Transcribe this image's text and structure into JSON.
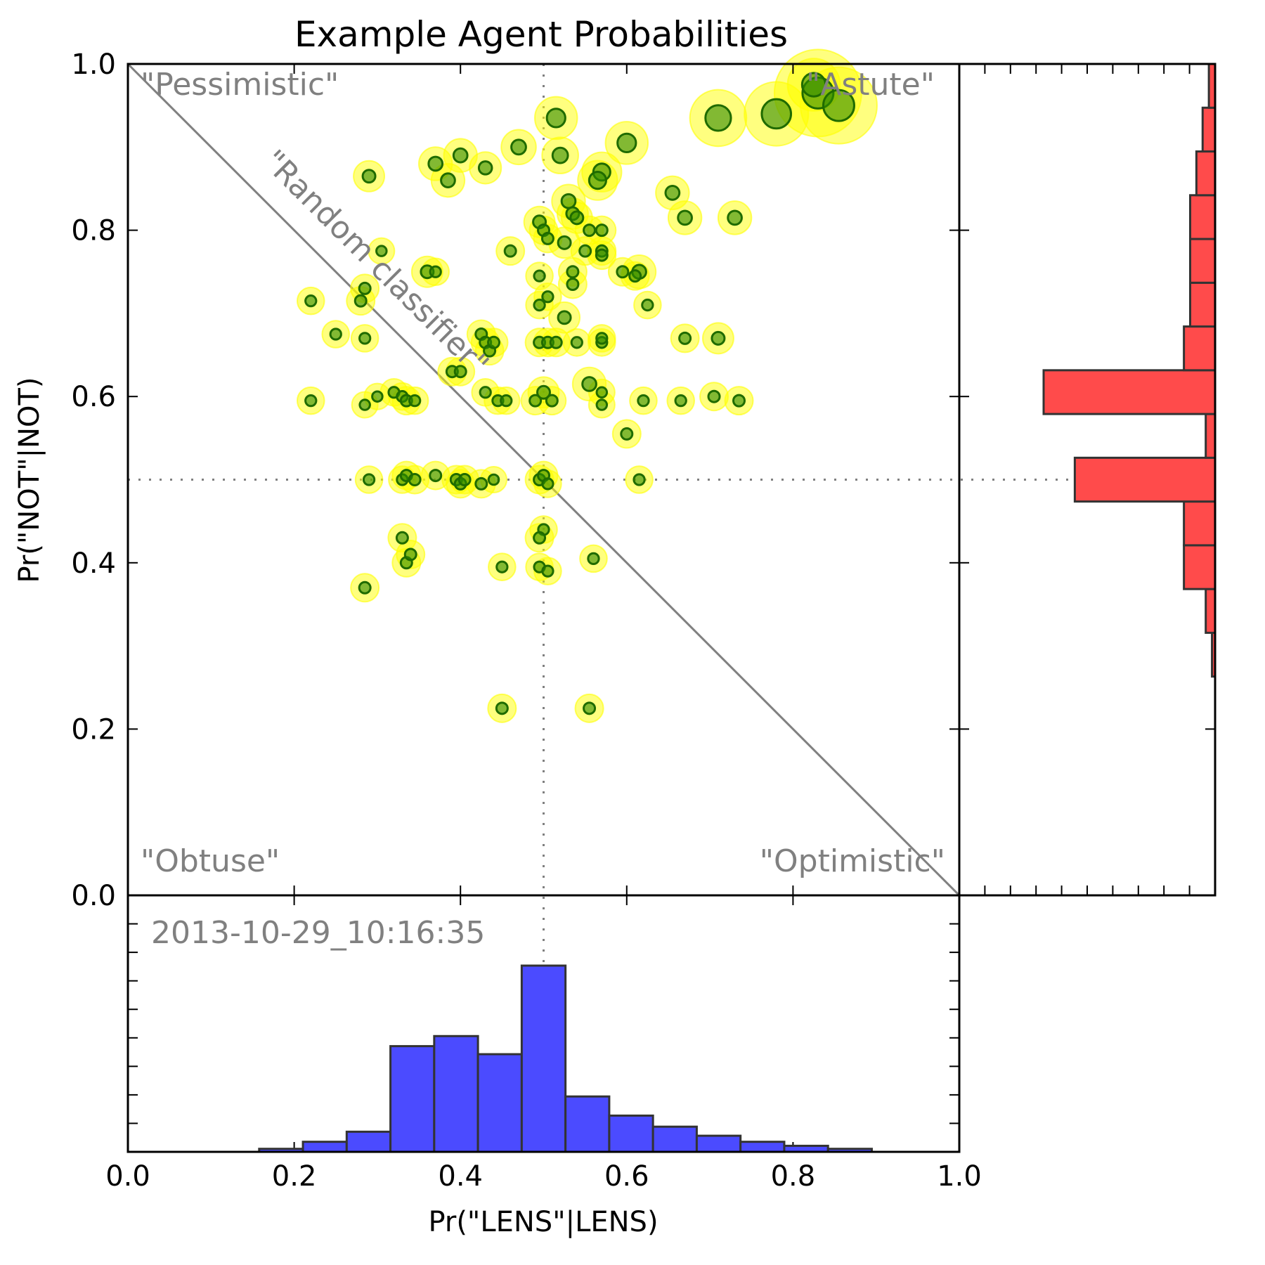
{
  "chart_data": {
    "type": "scatter",
    "title": "Example Agent Probabilities",
    "xlabel": "Pr(\"LENS\"|LENS)",
    "ylabel": "Pr(\"NOT\"|NOT)",
    "xlim": [
      0.0,
      1.0
    ],
    "ylim": [
      0.0,
      1.0
    ],
    "x_ticks": [
      "0.0",
      "0.2",
      "0.4",
      "0.6",
      "0.8",
      "1.0"
    ],
    "y_ticks": [
      "0.0",
      "0.2",
      "0.4",
      "0.6",
      "0.8",
      "1.0"
    ],
    "reference_lines": {
      "x": 0.5,
      "y": 0.5,
      "diagonal": [
        [
          0,
          1
        ],
        [
          1,
          0
        ]
      ]
    },
    "annotations": {
      "top_left": "\"Pessimistic\"",
      "top_right": "\"Astute\"",
      "bottom_left": "\"Obtuse\"",
      "bottom_right": "\"Optimistic\"",
      "diagonal": "\"Random classifier\"",
      "timestamp": "2013-10-29_10:16:35"
    },
    "colors": {
      "halo": "#ffff00",
      "point": "#2e8b00",
      "x_hist": "#4b4bff",
      "y_hist": "#ff4b4b",
      "reference": "#808080"
    },
    "points": [
      [
        0.83,
        0.965,
        16
      ],
      [
        0.855,
        0.95,
        12
      ],
      [
        0.78,
        0.94,
        8
      ],
      [
        0.71,
        0.935,
        6
      ],
      [
        0.825,
        0.975,
        5
      ],
      [
        0.515,
        0.935,
        3
      ],
      [
        0.6,
        0.905,
        3
      ],
      [
        0.47,
        0.9,
        1.8
      ],
      [
        0.52,
        0.89,
        2
      ],
      [
        0.4,
        0.89,
        1.6
      ],
      [
        0.37,
        0.88,
        1.6
      ],
      [
        0.43,
        0.875,
        1.4
      ],
      [
        0.57,
        0.87,
        2.5
      ],
      [
        0.565,
        0.86,
        2.5
      ],
      [
        0.385,
        0.86,
        1.6
      ],
      [
        0.29,
        0.865,
        1.3
      ],
      [
        0.655,
        0.845,
        1.6
      ],
      [
        0.53,
        0.835,
        1.6
      ],
      [
        0.535,
        0.82,
        1.3
      ],
      [
        0.54,
        0.815,
        1.3
      ],
      [
        0.67,
        0.815,
        1.6
      ],
      [
        0.73,
        0.815,
        1.6
      ],
      [
        0.495,
        0.81,
        1.3
      ],
      [
        0.5,
        0.8,
        1.0
      ],
      [
        0.57,
        0.8,
        1.0
      ],
      [
        0.555,
        0.8,
        1.0
      ],
      [
        0.505,
        0.79,
        1.0
      ],
      [
        0.525,
        0.785,
        1.3
      ],
      [
        0.46,
        0.775,
        1.0
      ],
      [
        0.55,
        0.775,
        1.0
      ],
      [
        0.57,
        0.775,
        1.0
      ],
      [
        0.57,
        0.77,
        1.0
      ],
      [
        0.305,
        0.775,
        0.8
      ],
      [
        0.36,
        0.75,
        1.3
      ],
      [
        0.37,
        0.75,
        0.9
      ],
      [
        0.535,
        0.75,
        1.0
      ],
      [
        0.595,
        0.75,
        1.0
      ],
      [
        0.615,
        0.75,
        1.6
      ],
      [
        0.61,
        0.745,
        1.0
      ],
      [
        0.495,
        0.745,
        0.9
      ],
      [
        0.535,
        0.735,
        1.0
      ],
      [
        0.285,
        0.73,
        1.0
      ],
      [
        0.505,
        0.72,
        0.9
      ],
      [
        0.22,
        0.715,
        0.9
      ],
      [
        0.28,
        0.715,
        1.0
      ],
      [
        0.625,
        0.71,
        0.9
      ],
      [
        0.495,
        0.71,
        0.9
      ],
      [
        0.525,
        0.695,
        1.3
      ],
      [
        0.25,
        0.675,
        0.9
      ],
      [
        0.285,
        0.67,
        0.9
      ],
      [
        0.425,
        0.675,
        1.0
      ],
      [
        0.43,
        0.665,
        1.0
      ],
      [
        0.435,
        0.655,
        1.0
      ],
      [
        0.44,
        0.665,
        1.0
      ],
      [
        0.54,
        0.665,
        0.9
      ],
      [
        0.57,
        0.665,
        0.9
      ],
      [
        0.57,
        0.67,
        0.9
      ],
      [
        0.67,
        0.67,
        1.0
      ],
      [
        0.71,
        0.67,
        1.3
      ],
      [
        0.495,
        0.665,
        1.0
      ],
      [
        0.505,
        0.665,
        1.0
      ],
      [
        0.515,
        0.665,
        1.0
      ],
      [
        0.39,
        0.63,
        1.0
      ],
      [
        0.4,
        0.63,
        1.0
      ],
      [
        0.555,
        0.615,
        1.6
      ],
      [
        0.22,
        0.595,
        0.9
      ],
      [
        0.285,
        0.59,
        0.8
      ],
      [
        0.3,
        0.6,
        0.8
      ],
      [
        0.32,
        0.605,
        0.9
      ],
      [
        0.33,
        0.6,
        0.9
      ],
      [
        0.335,
        0.595,
        1.0
      ],
      [
        0.345,
        0.595,
        0.9
      ],
      [
        0.43,
        0.605,
        0.9
      ],
      [
        0.445,
        0.595,
        0.9
      ],
      [
        0.455,
        0.595,
        0.9
      ],
      [
        0.49,
        0.595,
        1.0
      ],
      [
        0.5,
        0.605,
        1.3
      ],
      [
        0.51,
        0.595,
        1.0
      ],
      [
        0.57,
        0.605,
        0.8
      ],
      [
        0.57,
        0.59,
        0.8
      ],
      [
        0.62,
        0.595,
        0.9
      ],
      [
        0.665,
        0.595,
        0.9
      ],
      [
        0.705,
        0.6,
        1.0
      ],
      [
        0.735,
        0.595,
        1.0
      ],
      [
        0.6,
        0.555,
        1.0
      ],
      [
        0.29,
        0.5,
        0.9
      ],
      [
        0.33,
        0.5,
        0.9
      ],
      [
        0.335,
        0.505,
        1.0
      ],
      [
        0.345,
        0.5,
        1.0
      ],
      [
        0.37,
        0.505,
        1.0
      ],
      [
        0.395,
        0.5,
        1.0
      ],
      [
        0.4,
        0.495,
        1.0
      ],
      [
        0.405,
        0.5,
        1.0
      ],
      [
        0.425,
        0.495,
        1.0
      ],
      [
        0.44,
        0.5,
        0.8
      ],
      [
        0.495,
        0.5,
        1.0
      ],
      [
        0.5,
        0.505,
        1.0
      ],
      [
        0.505,
        0.495,
        0.9
      ],
      [
        0.615,
        0.5,
        0.9
      ],
      [
        0.5,
        0.44,
        0.9
      ],
      [
        0.495,
        0.43,
        1.0
      ],
      [
        0.33,
        0.43,
        1.0
      ],
      [
        0.335,
        0.4,
        1.0
      ],
      [
        0.34,
        0.41,
        1.0
      ],
      [
        0.45,
        0.395,
        0.9
      ],
      [
        0.495,
        0.395,
        0.9
      ],
      [
        0.505,
        0.39,
        0.9
      ],
      [
        0.56,
        0.405,
        0.9
      ],
      [
        0.285,
        0.37,
        1.0
      ],
      [
        0.45,
        0.225,
        1.0
      ],
      [
        0.555,
        0.225,
        1.0
      ]
    ],
    "x_histogram": {
      "bin_edges": [
        0.0,
        0.05263,
        0.10526,
        0.15789,
        0.21053,
        0.26316,
        0.31579,
        0.36842,
        0.42105,
        0.47368,
        0.52632,
        0.57895,
        0.63158,
        0.68421,
        0.73684,
        0.78947,
        0.84211,
        0.89474,
        0.94737,
        1.0
      ],
      "counts": [
        0,
        0,
        0,
        0.3,
        1,
        2,
        10.5,
        11.5,
        9.7,
        18.5,
        5.5,
        3.6,
        2.5,
        1.6,
        1.0,
        0.6,
        0.3,
        0,
        0
      ]
    },
    "y_histogram": {
      "bin_edges": [
        0.0,
        0.05263,
        0.10526,
        0.15789,
        0.21053,
        0.26316,
        0.31579,
        0.36842,
        0.42105,
        0.47368,
        0.52632,
        0.57895,
        0.63158,
        0.68421,
        0.73684,
        0.78947,
        0.84211,
        0.89474,
        0.94737,
        1.0
      ],
      "counts": [
        0,
        0,
        0,
        0,
        0,
        0.1,
        0.3,
        1.0,
        1.0,
        4.5,
        0.3,
        5.5,
        1.0,
        0.8,
        0.8,
        0.8,
        0.6,
        0.4,
        0.2
      ]
    }
  }
}
